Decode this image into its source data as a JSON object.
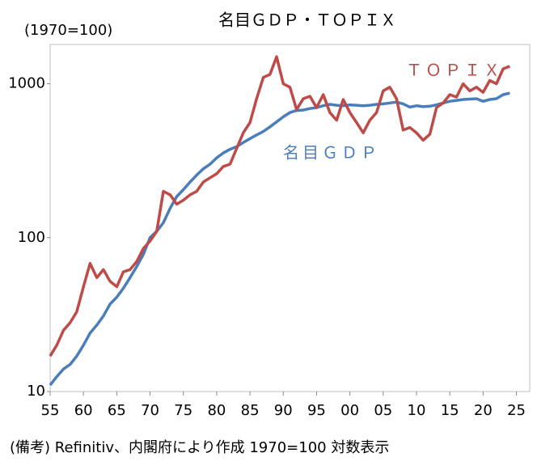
{
  "chart_data": {
    "type": "line",
    "title": "名目ＧＤＰ・ＴＯＰＩＸ",
    "y_label": "(1970=100)",
    "note": "(備考) Refinitiv、内閣府により作成 1970=100 対数表示",
    "log_scale": true,
    "grid": false,
    "xlim": [
      1955,
      2027
    ],
    "ylim": [
      10,
      1800
    ],
    "xticks": [
      {
        "value": 1955,
        "label": "55"
      },
      {
        "value": 1960,
        "label": "60"
      },
      {
        "value": 1965,
        "label": "65"
      },
      {
        "value": 1970,
        "label": "70"
      },
      {
        "value": 1975,
        "label": "75"
      },
      {
        "value": 1980,
        "label": "80"
      },
      {
        "value": 1985,
        "label": "85"
      },
      {
        "value": 1990,
        "label": "90"
      },
      {
        "value": 1995,
        "label": "95"
      },
      {
        "value": 2000,
        "label": "00"
      },
      {
        "value": 2005,
        "label": "05"
      },
      {
        "value": 2010,
        "label": "10"
      },
      {
        "value": 2015,
        "label": "15"
      },
      {
        "value": 2020,
        "label": "20"
      },
      {
        "value": 2025,
        "label": "25"
      }
    ],
    "yticks": [
      10,
      100,
      1000
    ],
    "x": [
      1955,
      1956,
      1957,
      1958,
      1959,
      1960,
      1961,
      1962,
      1963,
      1964,
      1965,
      1966,
      1967,
      1968,
      1969,
      1970,
      1971,
      1972,
      1973,
      1974,
      1975,
      1976,
      1977,
      1978,
      1979,
      1980,
      1981,
      1982,
      1983,
      1984,
      1985,
      1986,
      1987,
      1988,
      1989,
      1990,
      1991,
      1992,
      1993,
      1994,
      1995,
      1996,
      1997,
      1998,
      1999,
      2000,
      2001,
      2002,
      2003,
      2004,
      2005,
      2006,
      2007,
      2008,
      2009,
      2010,
      2011,
      2012,
      2013,
      2014,
      2015,
      2016,
      2017,
      2018,
      2019,
      2020,
      2021,
      2022,
      2023,
      2024
    ],
    "series": [
      {
        "name": "名目ＧＤＰ",
        "color": "#4a7ebb",
        "values": [
          11,
          12.5,
          14,
          15,
          17,
          20,
          24,
          27,
          31,
          37,
          41,
          47,
          55,
          65,
          78,
          100,
          110,
          125,
          155,
          185,
          205,
          230,
          255,
          280,
          300,
          330,
          355,
          375,
          390,
          415,
          440,
          465,
          490,
          525,
          565,
          610,
          650,
          670,
          675,
          690,
          700,
          720,
          735,
          725,
          720,
          730,
          725,
          720,
          725,
          735,
          740,
          750,
          760,
          740,
          705,
          720,
          710,
          715,
          730,
          750,
          770,
          780,
          790,
          795,
          800,
          770,
          790,
          800,
          850,
          870
        ]
      },
      {
        "name": "ＴＯＰＩＸ",
        "color": "#be4b48",
        "values": [
          17,
          20,
          25,
          28,
          33,
          48,
          68,
          55,
          62,
          52,
          48,
          60,
          62,
          70,
          85,
          95,
          110,
          200,
          190,
          165,
          175,
          190,
          200,
          230,
          245,
          260,
          290,
          300,
          380,
          480,
          560,
          800,
          1100,
          1150,
          1500,
          1000,
          950,
          680,
          800,
          830,
          700,
          850,
          650,
          580,
          790,
          650,
          560,
          480,
          580,
          650,
          900,
          950,
          800,
          500,
          520,
          480,
          430,
          470,
          700,
          750,
          850,
          820,
          1000,
          900,
          950,
          880,
          1050,
          1000,
          1250,
          1300
        ]
      }
    ]
  }
}
